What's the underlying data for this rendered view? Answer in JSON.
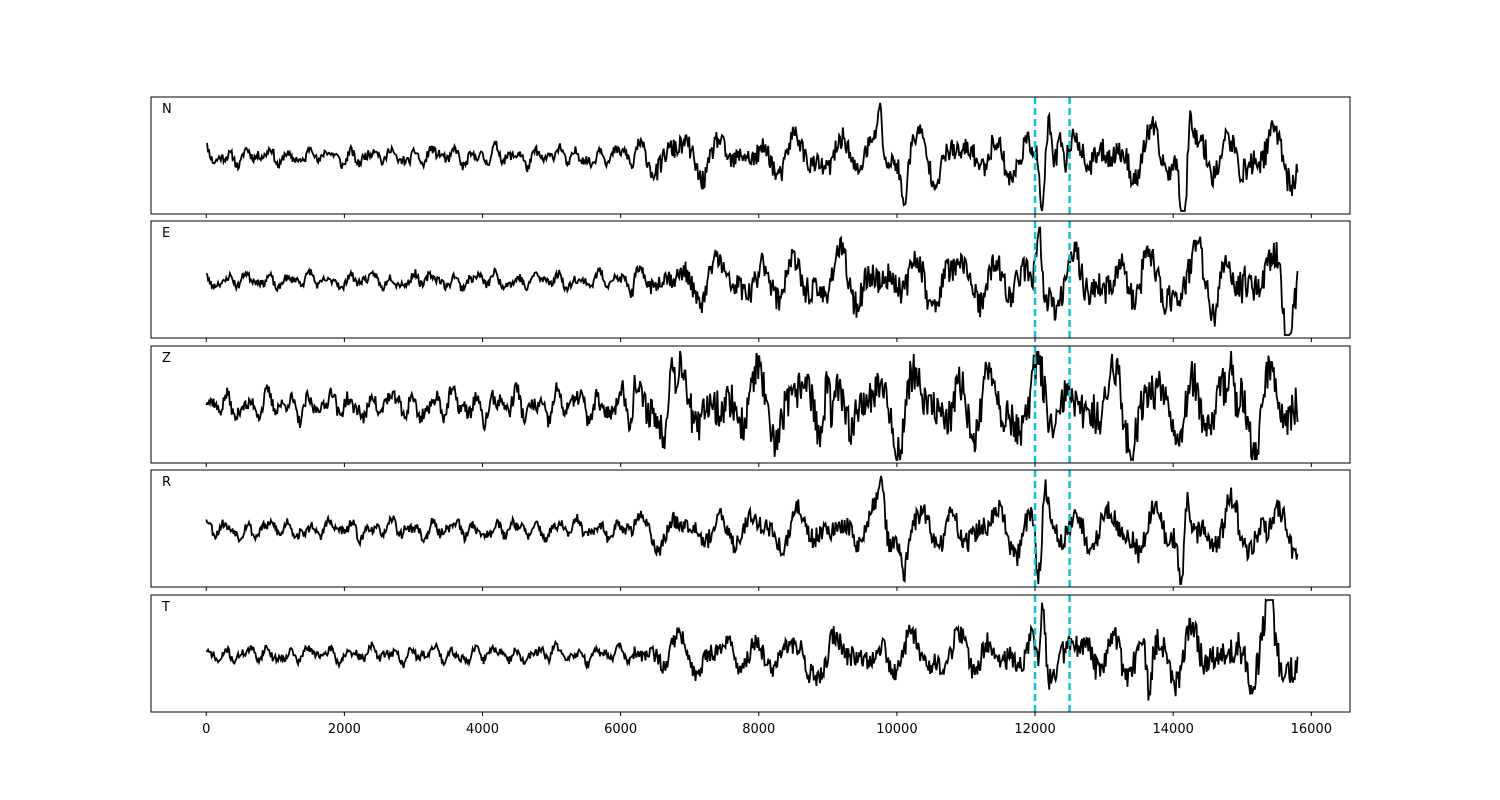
{
  "chart_data": {
    "type": "line",
    "xlim": [
      -800,
      16560
    ],
    "x_ticks": [
      {
        "value": 0,
        "label": "0"
      },
      {
        "value": 2000,
        "label": "2000"
      },
      {
        "value": 4000,
        "label": "4000"
      },
      {
        "value": 6000,
        "label": "6000"
      },
      {
        "value": 8000,
        "label": "8000"
      },
      {
        "value": 10000,
        "label": "10000"
      },
      {
        "value": 12000,
        "label": "12000"
      },
      {
        "value": 14000,
        "label": "14000"
      },
      {
        "value": 16000,
        "label": "16000"
      }
    ],
    "x_range": [
      0,
      15800
    ],
    "markers": {
      "values": [
        12000,
        12500
      ],
      "color": "#17becf",
      "style": "dashed"
    },
    "line_color": "#000000",
    "grid": false,
    "panels": [
      {
        "label": "N",
        "seed": 11,
        "spikes": [
          [
            9750,
            0.9
          ],
          [
            10100,
            -0.75
          ],
          [
            12100,
            -1.2
          ],
          [
            12200,
            0.6
          ],
          [
            12350,
            0.75
          ],
          [
            14150,
            -1.3
          ],
          [
            14250,
            0.75
          ]
        ],
        "envelope": [
          [
            0,
            0.18
          ],
          [
            6000,
            0.2
          ],
          [
            6500,
            0.42
          ],
          [
            10500,
            0.45
          ],
          [
            15800,
            0.55
          ]
        ]
      },
      {
        "label": "E",
        "seed": 23,
        "spikes": [
          [
            12080,
            1.1
          ],
          [
            12120,
            -0.95
          ],
          [
            15650,
            -0.75
          ]
        ],
        "envelope": [
          [
            0,
            0.15
          ],
          [
            6000,
            0.17
          ],
          [
            6500,
            0.35
          ],
          [
            8000,
            0.55
          ],
          [
            12000,
            0.55
          ],
          [
            15800,
            0.8
          ]
        ]
      },
      {
        "label": "Z",
        "seed": 37,
        "spikes": [
          [
            6720,
            0.95
          ],
          [
            9000,
            0.95
          ],
          [
            9050,
            -0.85
          ],
          [
            14900,
            -0.7
          ],
          [
            14850,
            0.85
          ]
        ],
        "envelope": [
          [
            0,
            0.25
          ],
          [
            6000,
            0.35
          ],
          [
            6400,
            0.75
          ],
          [
            12000,
            0.8
          ],
          [
            15800,
            0.85
          ]
        ]
      },
      {
        "label": "R",
        "seed": 53,
        "spikes": [
          [
            9780,
            0.85
          ],
          [
            10100,
            -0.75
          ],
          [
            12050,
            -1.0
          ],
          [
            12150,
            0.75
          ],
          [
            14120,
            -1.3
          ],
          [
            14200,
            0.65
          ]
        ],
        "envelope": [
          [
            0,
            0.18
          ],
          [
            6000,
            0.2
          ],
          [
            6500,
            0.35
          ],
          [
            10500,
            0.45
          ],
          [
            15800,
            0.55
          ]
        ]
      },
      {
        "label": "T",
        "seed": 71,
        "spikes": [
          [
            12100,
            1.1
          ],
          [
            12050,
            -0.95
          ],
          [
            8700,
            -0.65
          ],
          [
            13650,
            -0.85
          ],
          [
            15400,
            0.95
          ]
        ],
        "envelope": [
          [
            0,
            0.15
          ],
          [
            6000,
            0.18
          ],
          [
            6600,
            0.38
          ],
          [
            12000,
            0.5
          ],
          [
            15800,
            0.65
          ]
        ]
      }
    ]
  }
}
